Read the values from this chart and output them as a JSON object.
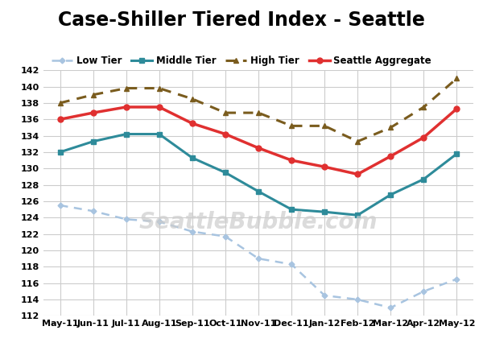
{
  "title": "Case-Shiller Tiered Index - Seattle",
  "months": [
    "May-11",
    "Jun-11",
    "Jul-11",
    "Aug-11",
    "Sep-11",
    "Oct-11",
    "Nov-11",
    "Dec-11",
    "Jan-12",
    "Feb-12",
    "Mar-12",
    "Apr-12",
    "May-12"
  ],
  "low_tier": [
    125.5,
    124.8,
    123.8,
    123.5,
    122.3,
    121.7,
    119.0,
    118.3,
    114.5,
    114.0,
    113.0,
    115.0,
    116.5
  ],
  "middle_tier": [
    132.0,
    133.3,
    134.2,
    134.2,
    131.3,
    129.5,
    127.2,
    125.0,
    124.7,
    124.3,
    126.8,
    128.7,
    131.8
  ],
  "high_tier": [
    138.0,
    139.0,
    139.8,
    139.8,
    138.5,
    136.8,
    136.8,
    135.2,
    135.2,
    133.3,
    135.0,
    137.5,
    141.0
  ],
  "seattle_agg": [
    136.0,
    136.8,
    137.5,
    137.5,
    135.5,
    134.2,
    132.5,
    131.0,
    130.2,
    129.3,
    131.5,
    133.8,
    137.3
  ],
  "low_color": "#a8c4e0",
  "middle_color": "#2e8b9a",
  "high_color": "#7a5c1e",
  "agg_color": "#e03030",
  "ylim": [
    112,
    142
  ],
  "yticks": [
    112,
    114,
    116,
    118,
    120,
    122,
    124,
    126,
    128,
    130,
    132,
    134,
    136,
    138,
    140,
    142
  ],
  "watermark": "SeattleBubble.com",
  "bg_color": "#ffffff",
  "grid_color": "#cccccc"
}
